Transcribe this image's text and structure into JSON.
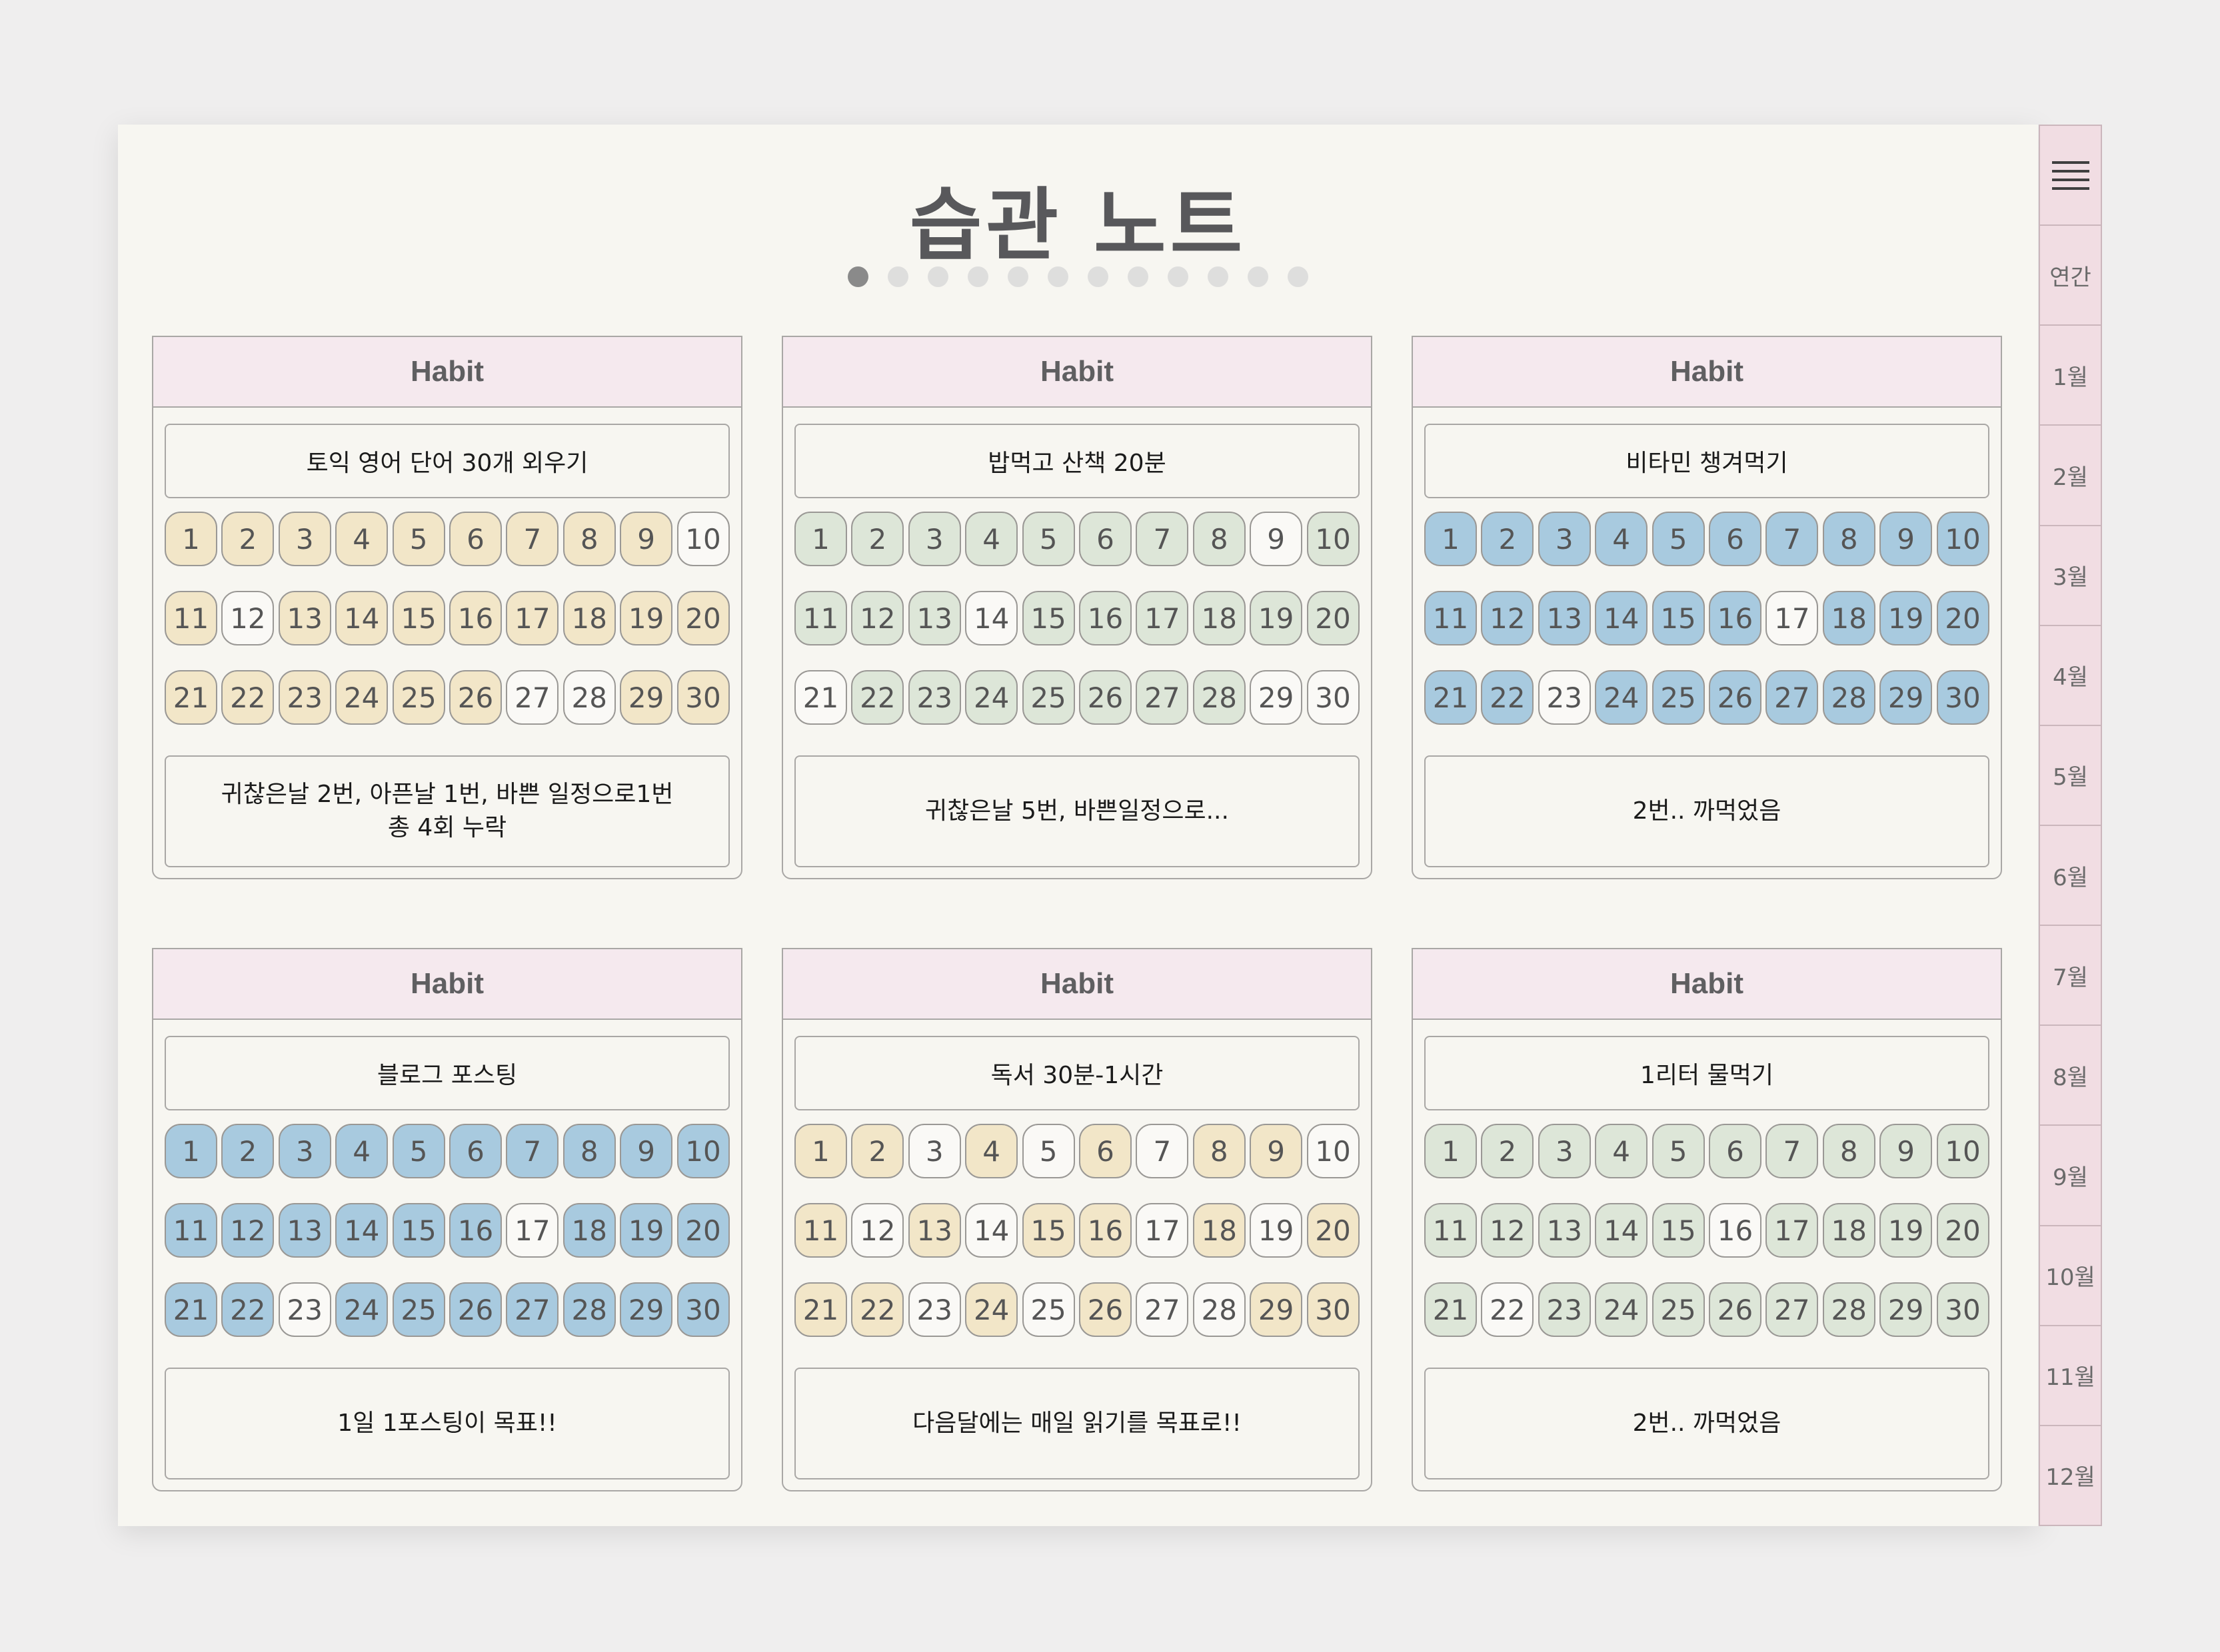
{
  "title": "습관 노트",
  "pager": {
    "total": 12,
    "active": 0
  },
  "tabs": [
    "연간",
    "1월",
    "2월",
    "3월",
    "4월",
    "5월",
    "6월",
    "7월",
    "8월",
    "9월",
    "10월",
    "11월",
    "12월"
  ],
  "menu_icon": "menu-icon",
  "colors": {
    "yellow": "#f2e6c8",
    "green": "#dde6d8",
    "blue": "#a8cadf",
    "header": "#f5e9ee",
    "tab": "#f1dde3"
  },
  "cards": [
    {
      "header": "Habit",
      "goal": "토익 영어 단어 30개 외우기",
      "color": "yellow",
      "done": [
        1,
        2,
        3,
        4,
        5,
        6,
        7,
        8,
        9,
        11,
        13,
        14,
        15,
        16,
        17,
        18,
        19,
        20,
        21,
        22,
        23,
        24,
        25,
        26,
        29,
        30
      ],
      "memo": "귀찮은날 2번, 아픈날 1번, 바쁜 일정으로1번\n총 4회 누락"
    },
    {
      "header": "Habit",
      "goal": "밥먹고 산책 20분",
      "color": "green",
      "done": [
        1,
        2,
        3,
        4,
        5,
        6,
        7,
        8,
        10,
        11,
        12,
        13,
        15,
        16,
        17,
        18,
        19,
        20,
        22,
        23,
        24,
        25,
        26,
        27,
        28
      ],
      "memo": "귀찮은날 5번, 바쁜일정으로..."
    },
    {
      "header": "Habit",
      "goal": "비타민 챙겨먹기",
      "color": "blue",
      "done": [
        1,
        2,
        3,
        4,
        5,
        6,
        7,
        8,
        9,
        10,
        11,
        12,
        13,
        14,
        15,
        16,
        18,
        19,
        20,
        21,
        22,
        24,
        25,
        26,
        27,
        28,
        29,
        30
      ],
      "memo": "2번.. 까먹었음"
    },
    {
      "header": "Habit",
      "goal": "블로그 포스팅",
      "color": "blue",
      "done": [
        1,
        2,
        3,
        4,
        5,
        6,
        7,
        8,
        9,
        10,
        11,
        12,
        13,
        14,
        15,
        16,
        18,
        19,
        20,
        21,
        22,
        24,
        25,
        26,
        27,
        28,
        29,
        30
      ],
      "memo": "1일 1포스팅이 목표!!"
    },
    {
      "header": "Habit",
      "goal": "독서 30분-1시간",
      "color": "yellow",
      "done": [
        1,
        2,
        4,
        6,
        8,
        9,
        11,
        13,
        15,
        16,
        18,
        20,
        21,
        22,
        24,
        26,
        29,
        30
      ],
      "memo": "다음달에는 매일 읽기를 목표로!!"
    },
    {
      "header": "Habit",
      "goal": "1리터 물먹기",
      "color": "green",
      "done": [
        1,
        2,
        3,
        4,
        5,
        6,
        7,
        8,
        9,
        10,
        11,
        12,
        13,
        14,
        15,
        17,
        18,
        19,
        20,
        21,
        23,
        24,
        25,
        26,
        27,
        28,
        29,
        30
      ],
      "memo": "2번.. 까먹었음"
    }
  ]
}
